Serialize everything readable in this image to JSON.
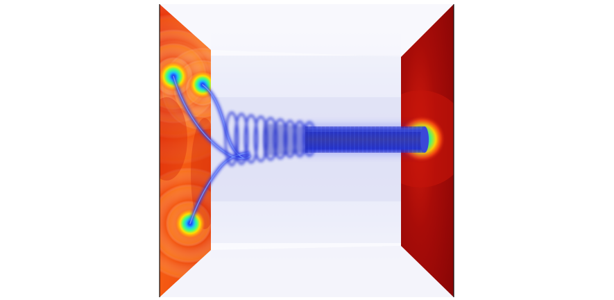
{
  "scene": {
    "left_panel": {
      "description_colors": [
        "#f04a10",
        "#ff8a10",
        "#d22208"
      ]
    },
    "right_panel": {
      "description_colors": [
        "#a80a08",
        "#8a0606",
        "#ffd000"
      ]
    },
    "tube": {
      "color": "#2a34c8",
      "edge_color": "#0a2aff"
    },
    "background": {
      "color": "#ffffff",
      "haze_color": "#c8caf0"
    }
  }
}
